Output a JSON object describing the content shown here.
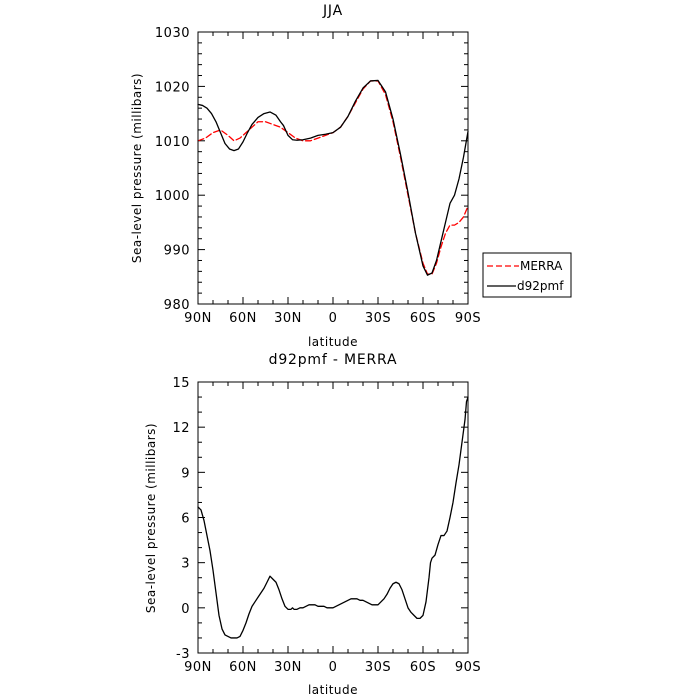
{
  "figure": {
    "background": "#ffffff"
  },
  "chart_data": [
    {
      "type": "line",
      "title": "JJA",
      "xlabel": "latitude",
      "ylabel": "Sea-level pressure (millibars)",
      "xlim": [
        90,
        -90
      ],
      "ylim": [
        980,
        1030
      ],
      "x_tick_values": [
        90,
        60,
        30,
        0,
        -30,
        -60,
        -90
      ],
      "x_tick_labels": [
        "90N",
        "60N",
        "30N",
        "0",
        "30S",
        "60S",
        "90S"
      ],
      "y_tick_values": [
        980,
        990,
        1000,
        1010,
        1020,
        1030
      ],
      "y_tick_labels": [
        "980",
        "990",
        "1000",
        "1010",
        "1020",
        "1030"
      ],
      "legend": {
        "placement": "right-bottom",
        "entries": [
          "MERRA",
          "d92pmf"
        ]
      },
      "series": [
        {
          "name": "MERRA",
          "color": "#ff0000",
          "dash": "dashed",
          "x": [
            90,
            85,
            80,
            75,
            70,
            66,
            62,
            58,
            54,
            50,
            45,
            40,
            35,
            30,
            25,
            20,
            15,
            10,
            5,
            0,
            -5,
            -10,
            -15,
            -20,
            -25,
            -30,
            -35,
            -40,
            -45,
            -50,
            -55,
            -60,
            -63,
            -66,
            -69,
            -72,
            -75,
            -78,
            -81,
            -84,
            -87,
            -90
          ],
          "y": [
            1010,
            1010.5,
            1011.5,
            1012,
            1011,
            1010,
            1010.5,
            1011.5,
            1012.5,
            1013.5,
            1013.5,
            1013,
            1012.5,
            1011.5,
            1010.5,
            1010,
            1010,
            1010.5,
            1011,
            1011.5,
            1012.5,
            1014.5,
            1017,
            1019.5,
            1021,
            1021,
            1018.5,
            1013.5,
            1007,
            1000,
            993,
            987.5,
            985.5,
            985.5,
            987.5,
            990.5,
            993,
            994.5,
            994.5,
            995,
            996,
            998
          ]
        },
        {
          "name": "d92pmf",
          "color": "#000000",
          "dash": "solid",
          "x": [
            90,
            87,
            84,
            81,
            78,
            75,
            72,
            69,
            66,
            63,
            60,
            57,
            54,
            50,
            46,
            42,
            38,
            35,
            33,
            30,
            27,
            24,
            20,
            15,
            10,
            5,
            0,
            -5,
            -10,
            -15,
            -20,
            -25,
            -30,
            -35,
            -40,
            -45,
            -50,
            -55,
            -60,
            -63,
            -66,
            -69,
            -72,
            -75,
            -78,
            -81,
            -84,
            -87,
            -90
          ],
          "y": [
            1016.7,
            1016.5,
            1016,
            1015,
            1013.5,
            1011.5,
            1009.5,
            1008.5,
            1008.2,
            1008.5,
            1009.8,
            1011.5,
            1013,
            1014.3,
            1015,
            1015.3,
            1014.7,
            1013.5,
            1012.8,
            1011,
            1010.2,
            1010.1,
            1010.2,
            1010.5,
            1011,
            1011.2,
            1011.5,
            1012.5,
            1014.5,
            1017.3,
            1019.7,
            1021,
            1021.1,
            1019,
            1014,
            1007.5,
            1000.5,
            993,
            987,
            985.3,
            985.7,
            988,
            991.5,
            995,
            998.5,
            1000,
            1003,
            1007,
            1011.7
          ]
        }
      ]
    },
    {
      "type": "line",
      "title": "d92pmf - MERRA",
      "xlabel": "latitude",
      "ylabel": "Sea-level pressure (millibars)",
      "xlim": [
        90,
        -90
      ],
      "ylim": [
        -3,
        15
      ],
      "x_tick_values": [
        90,
        60,
        30,
        0,
        -30,
        -60,
        -90
      ],
      "x_tick_labels": [
        "90N",
        "60N",
        "30N",
        "0",
        "30S",
        "60S",
        "90S"
      ],
      "y_tick_values": [
        -3,
        0,
        3,
        6,
        9,
        12,
        15
      ],
      "y_tick_labels": [
        "-3",
        "0",
        "3",
        "6",
        "9",
        "12",
        "15"
      ],
      "series": [
        {
          "color": "#000000",
          "dash": "solid",
          "x": [
            90,
            88,
            86,
            84,
            82,
            80,
            78,
            76,
            74,
            72,
            70,
            68,
            66,
            64,
            62,
            60,
            58,
            56,
            54,
            52,
            50,
            48,
            46,
            44,
            42,
            40,
            38,
            36,
            34,
            32,
            30,
            28,
            27,
            26,
            24,
            22,
            20,
            18,
            16,
            14,
            12,
            10,
            8,
            6,
            4,
            2,
            0,
            -2,
            -4,
            -6,
            -8,
            -10,
            -12,
            -14,
            -16,
            -18,
            -20,
            -22,
            -24,
            -26,
            -28,
            -30,
            -32,
            -34,
            -36,
            -38,
            -40,
            -42,
            -44,
            -46,
            -48,
            -50,
            -52,
            -54,
            -56,
            -58,
            -60,
            -62,
            -64,
            -65,
            -66,
            -68,
            -70,
            -72,
            -74,
            -76,
            -78,
            -80,
            -82,
            -84,
            -86,
            -88,
            -89,
            -90
          ],
          "y": [
            6.7,
            6.5,
            5.8,
            4.8,
            3.8,
            2.5,
            1.0,
            -0.5,
            -1.4,
            -1.8,
            -1.9,
            -2.0,
            -2.0,
            -2.0,
            -1.9,
            -1.5,
            -1.0,
            -0.4,
            0.1,
            0.4,
            0.7,
            1.0,
            1.3,
            1.7,
            2.1,
            1.9,
            1.7,
            1.2,
            0.6,
            0.1,
            -0.1,
            -0.1,
            0.0,
            -0.1,
            -0.1,
            0.0,
            0.0,
            0.1,
            0.2,
            0.2,
            0.2,
            0.1,
            0.1,
            0.1,
            0.0,
            0.0,
            0.0,
            0.1,
            0.2,
            0.3,
            0.4,
            0.5,
            0.6,
            0.6,
            0.6,
            0.5,
            0.5,
            0.4,
            0.3,
            0.2,
            0.2,
            0.2,
            0.4,
            0.6,
            0.9,
            1.3,
            1.6,
            1.7,
            1.6,
            1.2,
            0.6,
            0.0,
            -0.3,
            -0.5,
            -0.7,
            -0.7,
            -0.5,
            0.4,
            2.0,
            3.0,
            3.3,
            3.5,
            4.2,
            4.8,
            4.8,
            5.1,
            6.0,
            7.0,
            8.3,
            9.5,
            11.0,
            12.5,
            13.7,
            14.0
          ]
        }
      ]
    }
  ]
}
